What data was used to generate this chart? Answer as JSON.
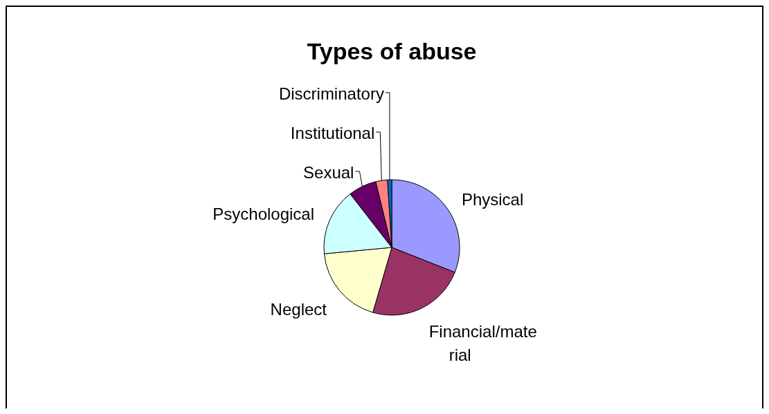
{
  "chart_data": {
    "type": "pie",
    "title": "Types of abuse",
    "categories": [
      "Physical",
      "Financial/material",
      "Neglect",
      "Psychological",
      "Sexual",
      "Institutional",
      "Discriminatory"
    ],
    "values": [
      31,
      23.5,
      19,
      16,
      6.7,
      2.8,
      1.0
    ],
    "colors": [
      "#9999ff",
      "#993366",
      "#ffffcc",
      "#ccffff",
      "#660066",
      "#ff8080",
      "#0066cc"
    ],
    "legend": false
  }
}
